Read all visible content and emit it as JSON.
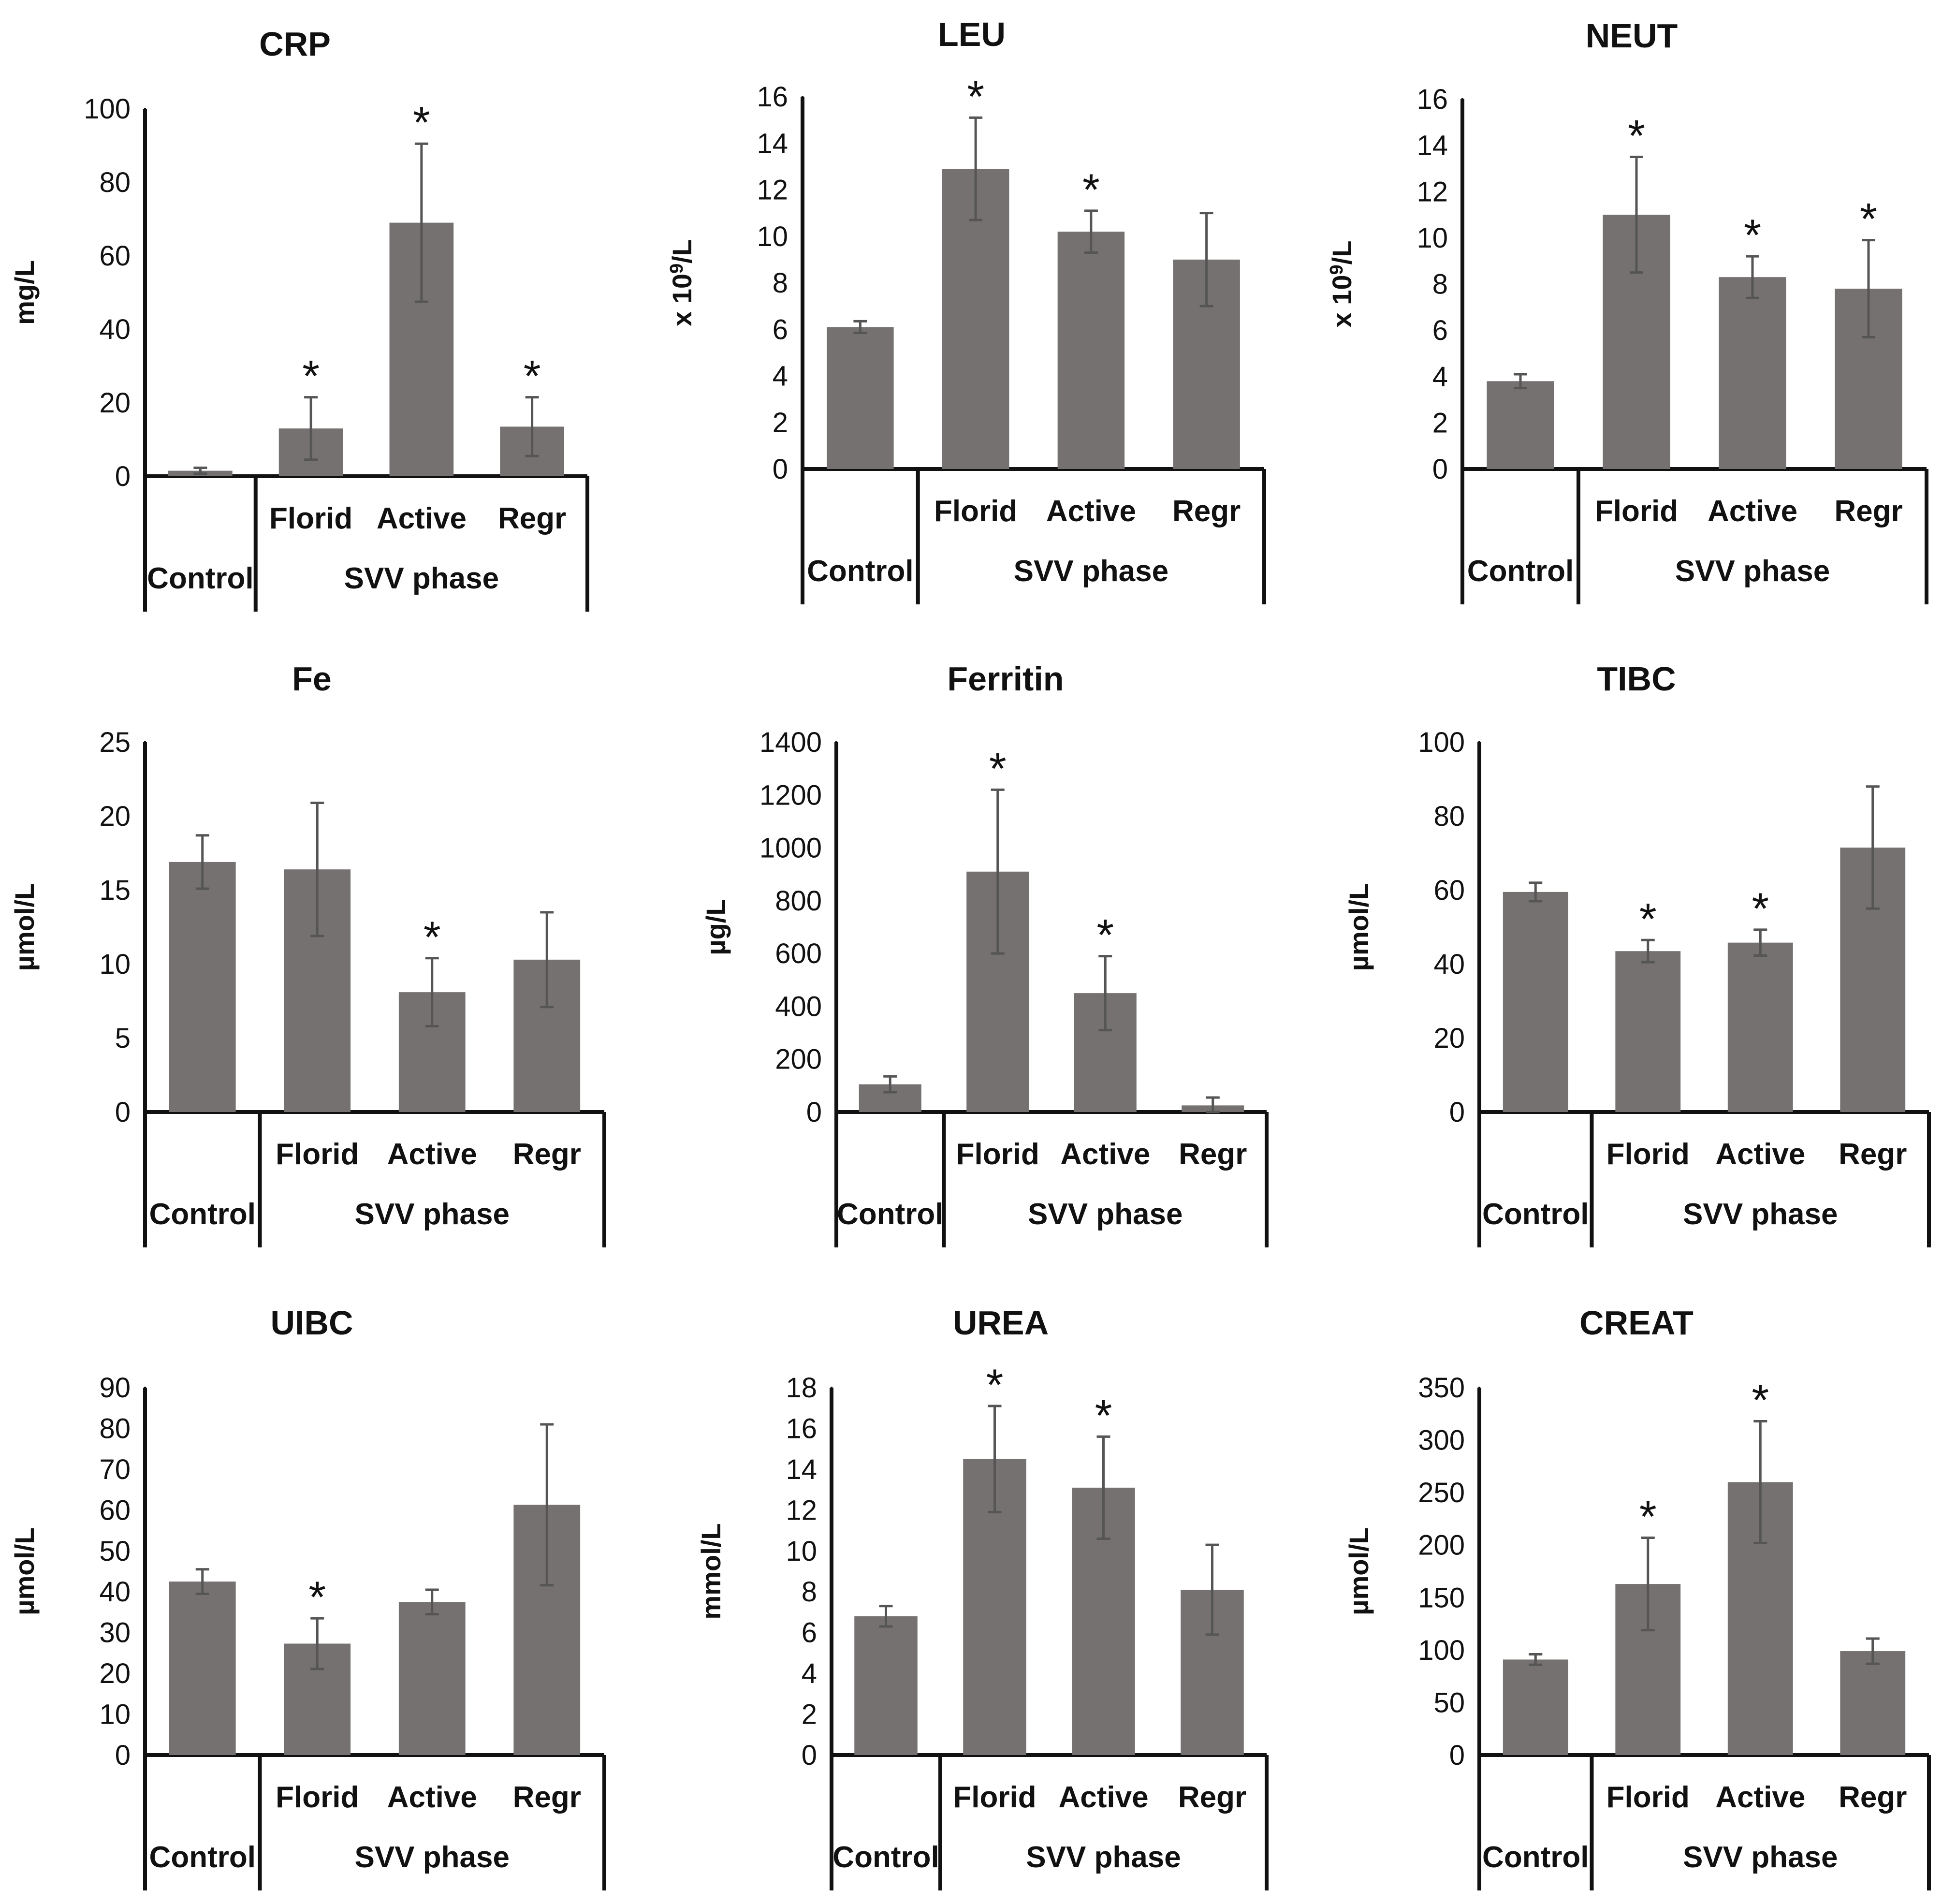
{
  "figure": {
    "background": "#ffffff",
    "bar_color": "#767171",
    "error_color": "#555555",
    "axis_color": "#111111"
  },
  "chart_data": [
    {
      "type": "bar",
      "title": "CRP",
      "ylabel": "mg/L",
      "ylabel_sup": "",
      "ylabel_tail": "",
      "ylim": [
        0,
        100
      ],
      "yticks": [
        0,
        20,
        40,
        60,
        80,
        100
      ],
      "categories": [
        "Control",
        "Florid",
        "Active",
        "Regr"
      ],
      "group_label": "SVV phase",
      "values": [
        1.5,
        13,
        69,
        13.5
      ],
      "errors": [
        0.8,
        8.5,
        21.5,
        8
      ],
      "significant": [
        false,
        true,
        true,
        true
      ],
      "significance_marker": "*"
    },
    {
      "type": "bar",
      "title": "LEU",
      "ylabel": "x 10",
      "ylabel_sup": "9",
      "ylabel_tail": "/L",
      "ylim": [
        0,
        16
      ],
      "yticks": [
        0,
        2,
        4,
        6,
        8,
        10,
        12,
        14,
        16
      ],
      "categories": [
        "Control",
        "Florid",
        "Active",
        "Regr"
      ],
      "group_label": "SVV phase",
      "values": [
        6.1,
        12.9,
        10.2,
        9.0
      ],
      "errors": [
        0.25,
        2.2,
        0.9,
        2.0
      ],
      "significant": [
        false,
        true,
        true,
        false
      ],
      "significance_marker": "*"
    },
    {
      "type": "bar",
      "title": "NEUT",
      "ylabel": "x 10",
      "ylabel_sup": "9",
      "ylabel_tail": "/L",
      "ylim": [
        0,
        16
      ],
      "yticks": [
        0,
        2,
        4,
        6,
        8,
        10,
        12,
        14,
        16
      ],
      "categories": [
        "Control",
        "Florid",
        "Active",
        "Regr"
      ],
      "group_label": "SVV phase",
      "values": [
        3.8,
        11.0,
        8.3,
        7.8
      ],
      "errors": [
        0.3,
        2.5,
        0.9,
        2.1
      ],
      "significant": [
        false,
        true,
        true,
        true
      ],
      "significance_marker": "*"
    },
    {
      "type": "bar",
      "title": "Fe",
      "ylabel": "µmol/L",
      "ylabel_sup": "",
      "ylabel_tail": "",
      "ylim": [
        0,
        25
      ],
      "yticks": [
        0,
        5,
        10,
        15,
        20,
        25
      ],
      "categories": [
        "Control",
        "Florid",
        "Active",
        "Regr"
      ],
      "group_label": "SVV phase",
      "values": [
        16.9,
        16.4,
        8.1,
        10.3
      ],
      "errors": [
        1.8,
        4.5,
        2.3,
        3.2
      ],
      "significant": [
        false,
        false,
        true,
        false
      ],
      "significance_marker": "*"
    },
    {
      "type": "bar",
      "title": "Ferritin",
      "ylabel": "µg/L",
      "ylabel_sup": "",
      "ylabel_tail": "",
      "ylim": [
        0,
        1400
      ],
      "yticks": [
        0,
        200,
        400,
        600,
        800,
        1000,
        1200,
        1400
      ],
      "categories": [
        "Control",
        "Florid",
        "Active",
        "Regr"
      ],
      "group_label": "SVV phase",
      "values": [
        105,
        910,
        450,
        25
      ],
      "errors": [
        30,
        310,
        140,
        30
      ],
      "significant": [
        false,
        true,
        true,
        false
      ],
      "significance_marker": "*"
    },
    {
      "type": "bar",
      "title": "TIBC",
      "ylabel": "µmol/L",
      "ylabel_sup": "",
      "ylabel_tail": "",
      "ylim": [
        0,
        100
      ],
      "yticks": [
        0,
        20,
        40,
        60,
        80,
        100
      ],
      "categories": [
        "Control",
        "Florid",
        "Active",
        "Regr"
      ],
      "group_label": "SVV phase",
      "values": [
        59.5,
        43.5,
        45.8,
        71.5
      ],
      "errors": [
        2.5,
        3,
        3.5,
        16.5
      ],
      "significant": [
        false,
        true,
        true,
        false
      ],
      "significance_marker": "*"
    },
    {
      "type": "bar",
      "title": "UIBC",
      "ylabel": "µmol/L",
      "ylabel_sup": "",
      "ylabel_tail": "",
      "ylim": [
        0,
        90
      ],
      "yticks": [
        0,
        10,
        20,
        30,
        40,
        50,
        60,
        70,
        80,
        90
      ],
      "categories": [
        "Control",
        "Florid",
        "Active",
        "Regr"
      ],
      "group_label": "SVV phase",
      "values": [
        42.5,
        27.3,
        37.5,
        61.3
      ],
      "errors": [
        3,
        6.2,
        3,
        19.7
      ],
      "significant": [
        false,
        true,
        false,
        false
      ],
      "significance_marker": "*"
    },
    {
      "type": "bar",
      "title": "UREA",
      "ylabel": "mmol/L",
      "ylabel_sup": "",
      "ylabel_tail": "",
      "ylim": [
        0,
        18
      ],
      "yticks": [
        0,
        2,
        4,
        6,
        8,
        10,
        12,
        14,
        16,
        18
      ],
      "categories": [
        "Control",
        "Florid",
        "Active",
        "Regr"
      ],
      "group_label": "SVV phase",
      "values": [
        6.8,
        14.5,
        13.1,
        8.1
      ],
      "errors": [
        0.5,
        2.6,
        2.5,
        2.2
      ],
      "significant": [
        false,
        true,
        true,
        false
      ],
      "significance_marker": "*"
    },
    {
      "type": "bar",
      "title": "CREAT",
      "ylabel": "µmol/L",
      "ylabel_sup": "",
      "ylabel_tail": "",
      "ylim": [
        0,
        350
      ],
      "yticks": [
        0,
        50,
        100,
        150,
        200,
        250,
        300,
        350
      ],
      "categories": [
        "Control",
        "Florid",
        "Active",
        "Regr"
      ],
      "group_label": "SVV phase",
      "values": [
        91,
        163,
        260,
        99
      ],
      "errors": [
        5,
        44,
        58,
        12
      ],
      "significant": [
        false,
        true,
        true,
        false
      ],
      "significance_marker": "*"
    }
  ]
}
